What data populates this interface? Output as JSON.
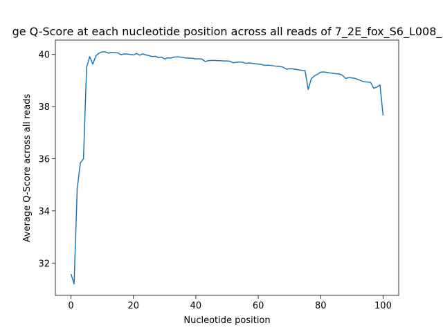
{
  "chart_data": {
    "type": "line",
    "title": "ge Q-Score at each nucleotide position across all reads of 7_2E_fox_S6_L008_",
    "x_label": "Nucleotide position",
    "y_label": "Average Q-Score across all reads",
    "x": [
      0,
      1,
      2,
      3,
      4,
      5,
      6,
      7,
      8,
      9,
      10,
      11,
      12,
      13,
      14,
      15,
      16,
      17,
      18,
      19,
      20,
      21,
      22,
      23,
      24,
      25,
      26,
      27,
      28,
      29,
      30,
      31,
      32,
      33,
      34,
      35,
      36,
      37,
      38,
      39,
      40,
      41,
      42,
      43,
      44,
      45,
      46,
      47,
      48,
      49,
      50,
      51,
      52,
      53,
      54,
      55,
      56,
      57,
      58,
      59,
      60,
      61,
      62,
      63,
      64,
      65,
      66,
      67,
      68,
      69,
      70,
      71,
      72,
      73,
      74,
      75,
      76,
      77,
      78,
      79,
      80,
      81,
      82,
      83,
      84,
      85,
      86,
      87,
      88,
      89,
      90,
      91,
      92,
      93,
      94,
      95,
      96,
      97,
      98,
      99,
      100
    ],
    "series": [
      {
        "color": "#1f77b4",
        "values": [
          31.58,
          31.2,
          34.86,
          35.84,
          36.0,
          39.5,
          39.92,
          39.63,
          39.95,
          40.05,
          40.1,
          40.1,
          40.05,
          40.08,
          40.07,
          40.06,
          39.99,
          40.02,
          40.02,
          40.0,
          39.98,
          40.04,
          39.97,
          40.02,
          39.98,
          39.96,
          39.92,
          39.93,
          39.88,
          39.9,
          39.83,
          39.87,
          39.86,
          39.9,
          39.91,
          39.9,
          39.88,
          39.86,
          39.86,
          39.85,
          39.83,
          39.83,
          39.82,
          39.73,
          39.76,
          39.77,
          39.77,
          39.76,
          39.76,
          39.75,
          39.75,
          39.74,
          39.68,
          39.7,
          39.71,
          39.7,
          39.66,
          39.67,
          39.66,
          39.64,
          39.63,
          39.62,
          39.58,
          39.59,
          39.58,
          39.56,
          39.55,
          39.54,
          39.51,
          39.44,
          39.45,
          39.45,
          39.43,
          39.41,
          39.39,
          39.38,
          38.66,
          39.07,
          39.18,
          39.24,
          39.32,
          39.33,
          39.31,
          39.29,
          39.28,
          39.26,
          39.25,
          39.2,
          39.08,
          39.11,
          39.1,
          39.08,
          39.04,
          38.99,
          38.95,
          38.94,
          38.93,
          38.7,
          38.75,
          38.83,
          37.66
        ]
      }
    ],
    "xlim": [
      -5,
      105
    ],
    "ylim": [
      30.76,
      40.55
    ],
    "xticks": [
      0,
      20,
      40,
      60,
      80,
      100
    ],
    "yticks": [
      32,
      34,
      36,
      38,
      40
    ]
  }
}
